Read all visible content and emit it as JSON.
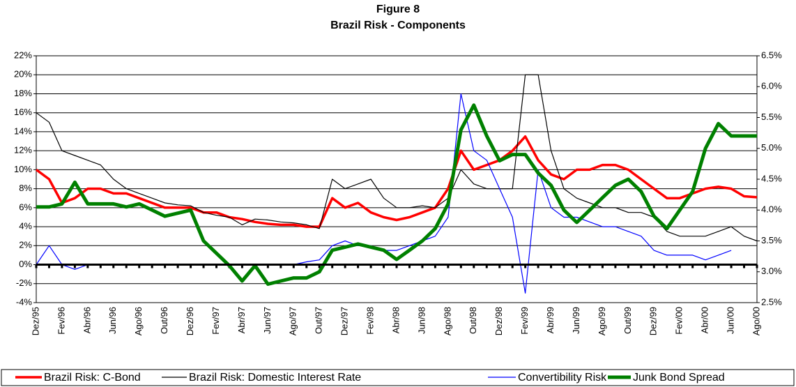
{
  "chart_data": {
    "type": "line",
    "title": "Figure 8",
    "subtitle": "Brazil Risk - Components",
    "categories": [
      "Dez/95",
      null,
      "Fev/96",
      null,
      "Abr/96",
      null,
      "Jun/96",
      null,
      "Ago/96",
      null,
      "Out/96",
      null,
      "Dez/96",
      null,
      "Fev/97",
      null,
      "Abr/97",
      null,
      "Jun/97",
      null,
      "Ago/97",
      null,
      "Out/97",
      null,
      "Dez/97",
      null,
      "Fev/98",
      null,
      "Abr/98",
      null,
      "Jun/98",
      null,
      "Ago/98",
      null,
      "Out/98",
      null,
      "Dez/98",
      null,
      "Fev/99",
      null,
      "Abr/99",
      null,
      "Jun/99",
      null,
      "Ago/99",
      null,
      "Out/99",
      null,
      "Dez/99",
      null,
      "Fev/00",
      null,
      "Abr/00",
      null,
      "Jun/00",
      null,
      "Ago/00"
    ],
    "ylim": [
      -4,
      22
    ],
    "yticks": [
      {
        "value": -4,
        "label": "-4%"
      },
      {
        "value": -2,
        "label": "-2%"
      },
      {
        "value": 0,
        "label": "0%"
      },
      {
        "value": 2,
        "label": "2%"
      },
      {
        "value": 4,
        "label": "4%"
      },
      {
        "value": 6,
        "label": "6%"
      },
      {
        "value": 8,
        "label": "8%"
      },
      {
        "value": 10,
        "label": "10%"
      },
      {
        "value": 12,
        "label": "12%"
      },
      {
        "value": 14,
        "label": "14%"
      },
      {
        "value": 16,
        "label": "16%"
      },
      {
        "value": 18,
        "label": "18%"
      },
      {
        "value": 20,
        "label": "20%"
      },
      {
        "value": 22,
        "label": "22%"
      }
    ],
    "y2lim": [
      2.5,
      6.5
    ],
    "y2ticks": [
      {
        "value": 2.5,
        "label": "2.5%"
      },
      {
        "value": 3.0,
        "label": "3.0%"
      },
      {
        "value": 3.5,
        "label": "3.5%"
      },
      {
        "value": 4.0,
        "label": "4.0%"
      },
      {
        "value": 4.5,
        "label": "4.5%"
      },
      {
        "value": 5.0,
        "label": "5.0%"
      },
      {
        "value": 5.5,
        "label": "5.5%"
      },
      {
        "value": 6.0,
        "label": "6.0%"
      },
      {
        "value": 6.5,
        "label": "6.5%"
      }
    ],
    "grid": true,
    "legend": "bottom",
    "series": [
      {
        "name": "Brazil Risk: C-Bond",
        "color": "#ff0000",
        "values": [
          10,
          9,
          6.5,
          7,
          8,
          8,
          7.5,
          7.5,
          7,
          6.5,
          6,
          6,
          6,
          5.5,
          5.5,
          5,
          4.8,
          4.5,
          4.3,
          4.2,
          4.2,
          4,
          4,
          7,
          6,
          6.5,
          5.5,
          5,
          4.7,
          5,
          5.5,
          6,
          8,
          12,
          10,
          10.5,
          11,
          12,
          13.5,
          11,
          9.5,
          9,
          10,
          10,
          10.5,
          10.5,
          10,
          9,
          8,
          7,
          7,
          7.5,
          8,
          8.2,
          8,
          7.2,
          7.1
        ]
      },
      {
        "name": "Brazil Risk: Domestic Interest Rate",
        "color": "#000000",
        "values": [
          16,
          15,
          12,
          11.5,
          11,
          10.5,
          9,
          8,
          7.5,
          7,
          6.5,
          6.3,
          6.2,
          5.5,
          5.2,
          5,
          4.2,
          4.8,
          4.7,
          4.5,
          4.4,
          4.2,
          3.8,
          9,
          8,
          8.5,
          9,
          7,
          6,
          6,
          6.2,
          6,
          7,
          10,
          8.5,
          8,
          8,
          8,
          20,
          20,
          12,
          8,
          7,
          6.5,
          6,
          6,
          5.5,
          5.5,
          5,
          3.5,
          3,
          3,
          3,
          3.5,
          4,
          3,
          2.5
        ]
      },
      {
        "name": "Convertibility Risk",
        "color": "#0000ff",
        "values": [
          0,
          2,
          0,
          -0.5,
          0,
          0,
          0,
          0,
          0,
          0,
          0,
          0,
          0,
          0,
          0,
          0,
          0,
          0,
          0,
          0,
          0,
          0.3,
          0.5,
          2,
          2.5,
          2,
          2,
          1.5,
          1.5,
          2,
          2.5,
          3,
          5,
          18,
          12,
          11,
          8,
          5,
          -3,
          10,
          6,
          5,
          5,
          4.5,
          4,
          4,
          3.5,
          3,
          1.5,
          1,
          1,
          1,
          0.5,
          1,
          1.5,
          null,
          null
        ]
      },
      {
        "name": "Junk Bond Spread",
        "color": "#008000",
        "axis": "y2",
        "values": [
          4.05,
          4.05,
          4.1,
          4.45,
          4.1,
          4.1,
          4.1,
          4.05,
          4.1,
          4.0,
          3.9,
          3.95,
          4.0,
          3.5,
          3.3,
          3.1,
          2.85,
          3.1,
          2.8,
          2.85,
          2.9,
          2.9,
          3.0,
          3.35,
          3.4,
          3.45,
          3.4,
          3.35,
          3.2,
          3.35,
          3.5,
          3.7,
          4.1,
          5.3,
          5.7,
          5.2,
          4.8,
          4.9,
          4.9,
          4.6,
          4.4,
          4.0,
          3.8,
          4.0,
          4.2,
          4.4,
          4.5,
          4.3,
          3.9,
          3.7,
          4.0,
          4.3,
          5.0,
          5.4,
          5.2,
          5.2,
          5.2
        ]
      }
    ]
  }
}
